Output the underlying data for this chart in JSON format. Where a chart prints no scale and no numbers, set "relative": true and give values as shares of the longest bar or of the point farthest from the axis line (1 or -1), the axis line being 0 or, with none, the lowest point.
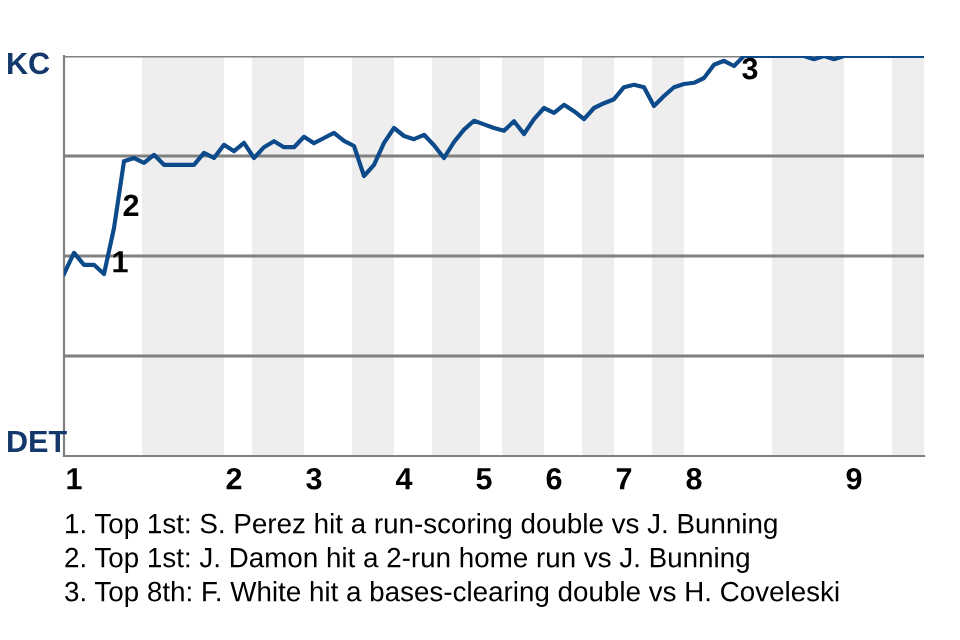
{
  "chart_data": {
    "type": "line",
    "relative": true,
    "categories": [
      null,
      "1",
      null,
      null,
      null,
      null,
      null,
      null,
      null,
      null,
      null,
      null,
      null,
      null,
      null,
      null,
      null,
      "2",
      null,
      null,
      null,
      null,
      null,
      null,
      null,
      "3",
      null,
      null,
      null,
      null,
      null,
      null,
      null,
      null,
      "4",
      null,
      null,
      null,
      null,
      null,
      null,
      null,
      "5",
      null,
      null,
      null,
      null,
      null,
      null,
      "6",
      null,
      null,
      null,
      null,
      null,
      null,
      "7",
      null,
      null,
      null,
      null,
      null,
      null,
      "8",
      null,
      null,
      null,
      null,
      null,
      null,
      null,
      null,
      null,
      null,
      null,
      null,
      null,
      null,
      null,
      "9",
      null,
      null,
      null,
      null,
      null,
      null,
      null
    ],
    "series": [
      {
        "color": "#0d4a8a",
        "values": [
          0.455,
          0.508,
          0.478,
          0.478,
          0.455,
          0.57,
          0.737,
          0.745,
          0.733,
          0.753,
          0.728,
          0.728,
          0.728,
          0.728,
          0.758,
          0.745,
          0.778,
          0.762,
          0.783,
          0.745,
          0.772,
          0.787,
          0.772,
          0.772,
          0.798,
          0.782,
          0.795,
          0.808,
          0.788,
          0.775,
          0.7,
          0.728,
          0.783,
          0.82,
          0.8,
          0.792,
          0.803,
          0.777,
          0.745,
          0.785,
          0.816,
          0.838,
          0.829,
          0.82,
          0.813,
          0.837,
          0.805,
          0.842,
          0.87,
          0.858,
          0.878,
          0.862,
          0.842,
          0.87,
          0.882,
          0.892,
          0.922,
          0.928,
          0.922,
          0.875,
          0.9,
          0.922,
          0.93,
          0.933,
          0.945,
          0.978,
          0.988,
          0.975,
          1,
          1,
          1,
          1,
          1,
          1,
          1,
          0.992,
          1,
          0.992,
          1,
          1,
          1,
          1,
          1,
          1,
          1,
          1,
          1
        ]
      }
    ],
    "grid": false,
    "marker": "none",
    "line_style": "solid",
    "ref_lines": [
      {
        "axis": "y",
        "value": 0.25,
        "color": "#808080"
      },
      {
        "axis": "y",
        "value": 0.5,
        "color": "#808080"
      },
      {
        "axis": "y",
        "value": 0.75,
        "color": "#808080"
      },
      {
        "axis": "y",
        "value": 1,
        "color": "#808080"
      }
    ],
    "annotations": [
      "1",
      "2",
      "3",
      "KC",
      "DET",
      "1. Top 1st: S. Perez hit a run-scoring double vs J. Bunning",
      "2. Top 1st: J. Damon hit a 2-run home run vs J. Bunning",
      "3. Top 8th: F. White hit a bases-clearing double vs H. Coveleski"
    ]
  }
}
